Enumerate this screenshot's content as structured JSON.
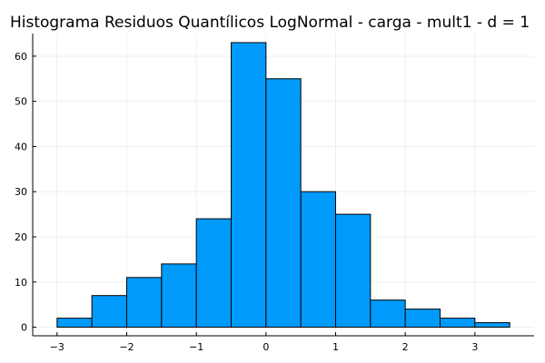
{
  "chart_data": {
    "type": "bar",
    "title": "Histograma Residuos Quantílicos LogNormal - carga - mult1 - d = 1",
    "xlabel": "",
    "ylabel": "",
    "bin_edges": [
      -3.0,
      -2.5,
      -2.0,
      -1.5,
      -1.0,
      -0.5,
      0.0,
      0.5,
      1.0,
      1.5,
      2.0,
      2.5,
      3.0,
      3.5
    ],
    "values": [
      2,
      7,
      11,
      14,
      24,
      63,
      55,
      30,
      25,
      6,
      4,
      2,
      1
    ],
    "xlim": [
      -3.35,
      3.85
    ],
    "ylim": [
      -1.9,
      65
    ],
    "x_ticks": [
      -3,
      -2,
      -1,
      0,
      1,
      2,
      3
    ],
    "x_tick_labels": [
      "−3",
      "−2",
      "−1",
      "0",
      "1",
      "2",
      "3"
    ],
    "y_ticks": [
      0,
      10,
      20,
      30,
      40,
      50,
      60
    ],
    "y_tick_labels": [
      "0",
      "10",
      "20",
      "30",
      "40",
      "50",
      "60"
    ],
    "grid": true,
    "legend": "none",
    "bar_color": "#009AFA",
    "edge_color": "#000000"
  }
}
